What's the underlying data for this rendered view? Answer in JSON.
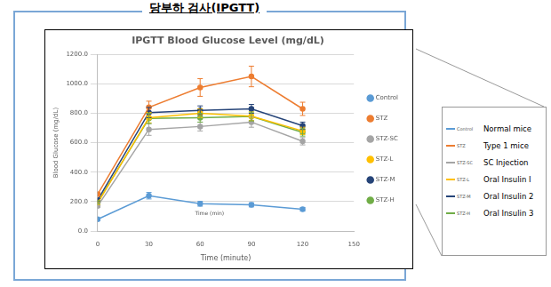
{
  "header": {
    "title": "당부하 검사(IPGTT)"
  },
  "chart_data": {
    "type": "line",
    "title": "IPGTT Blood Glucose Level (mg/dL)",
    "x_label": "Time (minute)",
    "y_label": "Blood Glucose (mg/dL)",
    "x": [
      0,
      30,
      60,
      90,
      120
    ],
    "series": [
      {
        "name": "Control",
        "color": "#5b9bd5",
        "values": [
          80,
          240,
          185,
          178,
          148
        ],
        "errors": [
          8,
          22,
          16,
          14,
          12
        ]
      },
      {
        "name": "STZ",
        "color": "#ed7d31",
        "values": [
          250,
          840,
          975,
          1050,
          830
        ],
        "errors": [
          12,
          42,
          60,
          70,
          45
        ]
      },
      {
        "name": "STZ-SC",
        "color": "#a5a5a5",
        "values": [
          170,
          690,
          710,
          740,
          610
        ],
        "errors": [
          10,
          40,
          30,
          35,
          25
        ]
      },
      {
        "name": "STZ-L",
        "color": "#ffc000",
        "values": [
          190,
          770,
          800,
          780,
          680
        ],
        "errors": [
          10,
          35,
          30,
          30,
          25
        ]
      },
      {
        "name": "STZ-M",
        "color": "#264478",
        "values": [
          210,
          805,
          820,
          830,
          715
        ],
        "errors": [
          10,
          35,
          30,
          30,
          25
        ]
      },
      {
        "name": "STZ-H",
        "color": "#70ad47",
        "values": [
          195,
          765,
          770,
          778,
          670
        ],
        "errors": [
          10,
          35,
          30,
          30,
          25
        ]
      }
    ],
    "xlim": [
      0,
      150
    ],
    "xticks": [
      0,
      30,
      60,
      90,
      120,
      150
    ],
    "ylim": [
      0,
      1200
    ],
    "yticks": [
      {
        "value": 0,
        "label": "0.0"
      },
      {
        "value": 200,
        "label": "200.0"
      },
      {
        "value": 400,
        "label": "400.0"
      },
      {
        "value": 600,
        "label": "600.0"
      },
      {
        "value": 800,
        "label": "800.0"
      },
      {
        "value": 1000,
        "label": "1000.0"
      },
      {
        "value": 1200,
        "label": "1200.0"
      }
    ],
    "grid": true,
    "legend": "right",
    "marker": "circle",
    "annotations": [
      {
        "text": "Time (min)",
        "x": 57,
        "y": 120
      }
    ]
  },
  "legend_box": {
    "items": [
      {
        "key": "Control",
        "label": "Normal mice"
      },
      {
        "key": "STZ",
        "label": "Type 1 mice"
      },
      {
        "key": "STZ-SC",
        "label": "SC Injection"
      },
      {
        "key": "STZ-L",
        "label": "Oral Insulin I"
      },
      {
        "key": "STZ-M",
        "label": "Oral Insulin 2"
      },
      {
        "key": "STZ-H",
        "label": "Oral Insulin 3"
      }
    ]
  }
}
